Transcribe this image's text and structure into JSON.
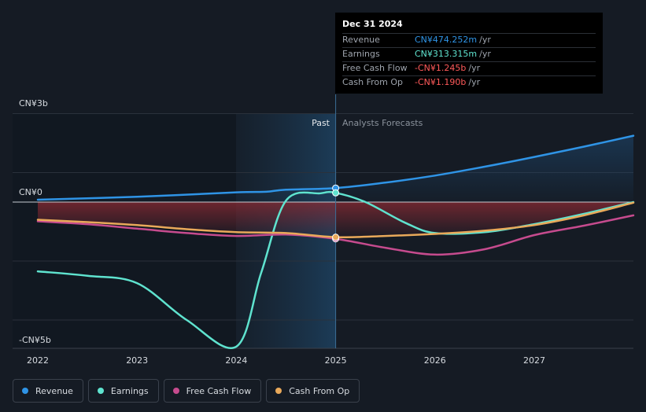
{
  "colors": {
    "revenue": "#2f94e6",
    "earnings": "#5fe3cf",
    "free_cash_flow": "#c64b8e",
    "cash_from_op": "#e9a95a",
    "negative_value": "#ff5a5a",
    "background": "#151b24"
  },
  "tooltip": {
    "date": "Dec 31 2024",
    "rows": [
      {
        "label": "Revenue",
        "value": "CN¥474.252m",
        "unit": "/yr"
      },
      {
        "label": "Earnings",
        "value": "CN¥313.315m",
        "unit": "/yr"
      },
      {
        "label": "Free Cash Flow",
        "value": "-CN¥1.245b",
        "unit": "/yr"
      },
      {
        "label": "Cash From Op",
        "value": "-CN¥1.190b",
        "unit": "/yr"
      }
    ]
  },
  "region_labels": {
    "past": "Past",
    "forecast": "Analysts Forecasts"
  },
  "chart_data": {
    "type": "line",
    "y_tick_labels": [
      "CN¥3b",
      "CN¥0",
      "-CN¥5b"
    ],
    "x_tick_labels": [
      "2022",
      "2023",
      "2024",
      "2025",
      "2026",
      "2027"
    ],
    "xlim": [
      2022.0,
      2028.0
    ],
    "ylim": [
      -5.0,
      3.0
    ],
    "past_region": [
      2024.0,
      2025.0
    ],
    "highlight_x": 2025.0,
    "grid": true,
    "legend_position": "bottom-left",
    "series": [
      {
        "name": "Revenue",
        "key": "revenue",
        "points": [
          [
            2022.0,
            0.08
          ],
          [
            2023.0,
            0.18
          ],
          [
            2024.0,
            0.33
          ],
          [
            2024.3,
            0.35
          ],
          [
            2024.5,
            0.42
          ],
          [
            2025.0,
            0.474
          ],
          [
            2025.5,
            0.66
          ],
          [
            2026.0,
            0.9
          ],
          [
            2026.5,
            1.2
          ],
          [
            2027.0,
            1.53
          ],
          [
            2027.5,
            1.88
          ],
          [
            2028.0,
            2.25
          ]
        ]
      },
      {
        "name": "Earnings",
        "key": "earnings",
        "points": [
          [
            2022.0,
            -2.35
          ],
          [
            2022.5,
            -2.5
          ],
          [
            2023.0,
            -2.75
          ],
          [
            2023.5,
            -4.0
          ],
          [
            2024.0,
            -4.9
          ],
          [
            2024.25,
            -2.4
          ],
          [
            2024.5,
            0.05
          ],
          [
            2024.85,
            0.3
          ],
          [
            2025.0,
            0.313
          ],
          [
            2025.3,
            0.0
          ],
          [
            2025.7,
            -0.7
          ],
          [
            2026.0,
            -1.05
          ],
          [
            2026.5,
            -1.02
          ],
          [
            2027.0,
            -0.75
          ],
          [
            2027.5,
            -0.4
          ],
          [
            2028.0,
            0.0
          ]
        ]
      },
      {
        "name": "Free Cash Flow",
        "key": "free_cash_flow",
        "points": [
          [
            2022.0,
            -0.65
          ],
          [
            2022.5,
            -0.75
          ],
          [
            2023.0,
            -0.9
          ],
          [
            2023.5,
            -1.05
          ],
          [
            2024.0,
            -1.15
          ],
          [
            2024.5,
            -1.1
          ],
          [
            2025.0,
            -1.245
          ],
          [
            2025.5,
            -1.55
          ],
          [
            2026.0,
            -1.78
          ],
          [
            2026.5,
            -1.6
          ],
          [
            2027.0,
            -1.12
          ],
          [
            2027.5,
            -0.8
          ],
          [
            2028.0,
            -0.45
          ]
        ]
      },
      {
        "name": "Cash From Op",
        "key": "cash_from_op",
        "points": [
          [
            2022.0,
            -0.6
          ],
          [
            2022.5,
            -0.68
          ],
          [
            2023.0,
            -0.78
          ],
          [
            2023.5,
            -0.92
          ],
          [
            2024.0,
            -1.02
          ],
          [
            2024.5,
            -1.05
          ],
          [
            2025.0,
            -1.19
          ],
          [
            2025.5,
            -1.15
          ],
          [
            2026.0,
            -1.08
          ],
          [
            2026.5,
            -0.97
          ],
          [
            2027.0,
            -0.78
          ],
          [
            2027.5,
            -0.45
          ],
          [
            2028.0,
            -0.02
          ]
        ]
      }
    ]
  }
}
